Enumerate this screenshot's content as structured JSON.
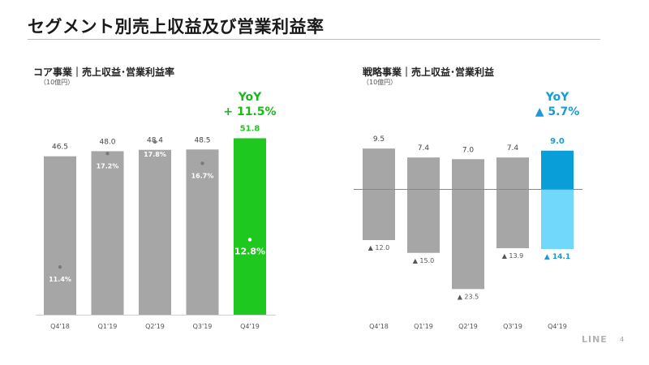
{
  "page": {
    "title": "セグメント別売上収益及び営業利益率",
    "logo": "LINE",
    "page_number": "4"
  },
  "colors": {
    "bar_gray": "#a6a6a6",
    "core_highlight": "#1ec81e",
    "strategic_highlight_top": "#0a9ed9",
    "strategic_highlight_bottom": "#71d7fb",
    "yoy_core": "#1bb81b",
    "yoy_strategic": "#1a9bd7"
  },
  "chart_data": [
    {
      "type": "bar",
      "title": "コア事業｜売上収益･営業利益率",
      "unit": "（10億円）",
      "categories": [
        "Q4'18",
        "Q1'19",
        "Q2'19",
        "Q3'19",
        "Q4'19"
      ],
      "series": [
        {
          "name": "",
          "values": [
            46.5,
            48.0,
            48.4,
            48.5,
            51.8
          ]
        },
        {
          "name": "",
          "values": [
            11.4,
            17.2,
            17.8,
            16.7,
            12.8
          ]
        }
      ],
      "value_labels": [
        "46.5",
        "48.0",
        "48.4",
        "48.5",
        "51.8"
      ],
      "margin_labels": [
        "11.4%",
        "17.2%",
        "17.8%",
        "16.7%",
        "12.8%"
      ],
      "yoy_label": "YoY",
      "yoy_value": "+ 11.5%",
      "highlight_index": 4
    },
    {
      "type": "bar",
      "title": "戦略事業｜売上収益･営業利益",
      "unit": "（10億円）",
      "categories": [
        "Q4'18",
        "Q1'19",
        "Q2'19",
        "Q3'19",
        "Q4'19"
      ],
      "series": [
        {
          "name": "",
          "values": [
            9.5,
            7.4,
            7.0,
            7.4,
            9.0
          ]
        },
        {
          "name": "",
          "values": [
            -12.0,
            -15.0,
            -23.5,
            -13.9,
            -14.1
          ]
        }
      ],
      "value_labels": [
        "9.5",
        "7.4",
        "7.0",
        "7.4",
        "9.0"
      ],
      "loss_labels": [
        "▲ 12.0",
        "▲ 15.0",
        "▲ 23.5",
        "▲ 13.9",
        "▲ 14.1"
      ],
      "yoy_label": "YoY",
      "yoy_value": "▲ 5.7%",
      "highlight_index": 4
    }
  ]
}
